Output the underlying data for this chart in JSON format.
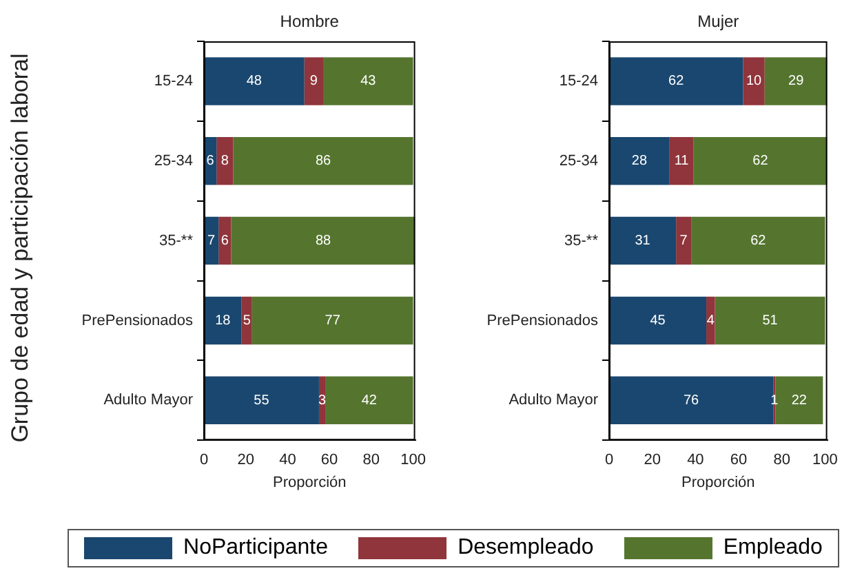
{
  "chart_data": [
    {
      "type": "bar",
      "title": "Hombre",
      "ylabel": "Grupo de edad y participación laboral",
      "xlabel": "Proporción",
      "orientation": "horizontal",
      "stacked": true,
      "categories": [
        "15-24",
        "25-34",
        "35-**",
        "PrePensionados",
        "Adulto Mayor"
      ],
      "series": [
        {
          "name": "NoParticipante",
          "color": "#1a476f",
          "values": [
            48,
            6,
            7,
            18,
            55
          ]
        },
        {
          "name": "Desempleado",
          "color": "#90353b",
          "values": [
            9,
            8,
            6,
            5,
            3
          ]
        },
        {
          "name": "Empleado",
          "color": "#55752f",
          "values": [
            43,
            86,
            88,
            77,
            42
          ]
        }
      ],
      "xlim": [
        0,
        101
      ],
      "xticks": [
        0,
        20,
        40,
        60,
        80,
        100
      ],
      "data_labels": true,
      "grid": false,
      "legend": "bottom"
    },
    {
      "type": "bar",
      "title": "Mujer",
      "xlabel": "Proporción",
      "orientation": "horizontal",
      "stacked": true,
      "categories": [
        "15-24",
        "25-34",
        "35-**",
        "PrePensionados",
        "Adulto Mayor"
      ],
      "series": [
        {
          "color": "#1a476f",
          "values": [
            62,
            28,
            31,
            45,
            76
          ]
        },
        {
          "color": "#90353b",
          "values": [
            10,
            11,
            7,
            4,
            1
          ]
        },
        {
          "color": "#55752f",
          "values": [
            29,
            62,
            62,
            51,
            22
          ]
        }
      ],
      "xlim": [
        0,
        101
      ],
      "xticks": [
        0,
        20,
        40,
        60,
        80,
        100
      ],
      "data_labels": true,
      "grid": false
    }
  ]
}
